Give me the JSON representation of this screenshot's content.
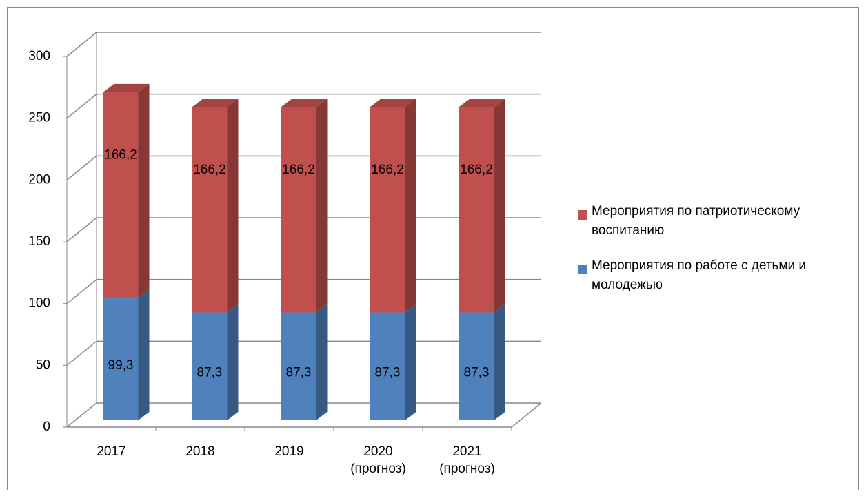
{
  "chart_data": {
    "type": "bar3d_stacked",
    "categories": [
      "2017",
      "2018",
      "2019",
      "2020\n(прогноз)",
      "2021\n(прогноз)"
    ],
    "series": [
      {
        "name": "Мероприятия по работе с детьми и молодежью",
        "color": "#4f81bd",
        "values": [
          99.3,
          87.3,
          87.3,
          87.3,
          87.3
        ],
        "value_labels": [
          "99,3",
          "87,3",
          "87,3",
          "87,3",
          "87,3"
        ]
      },
      {
        "name": "Мероприятия по патриотическому воспитанию",
        "color": "#c0504d",
        "values": [
          166.2,
          166.2,
          166.2,
          166.2,
          166.2
        ],
        "value_labels": [
          "166,2",
          "166,2",
          "166,2",
          "166,2",
          "166,2"
        ]
      }
    ],
    "ylim": [
      0,
      300
    ],
    "yticks": [
      0,
      50,
      100,
      150,
      200,
      250,
      300
    ],
    "grid": true,
    "legend": "right"
  }
}
